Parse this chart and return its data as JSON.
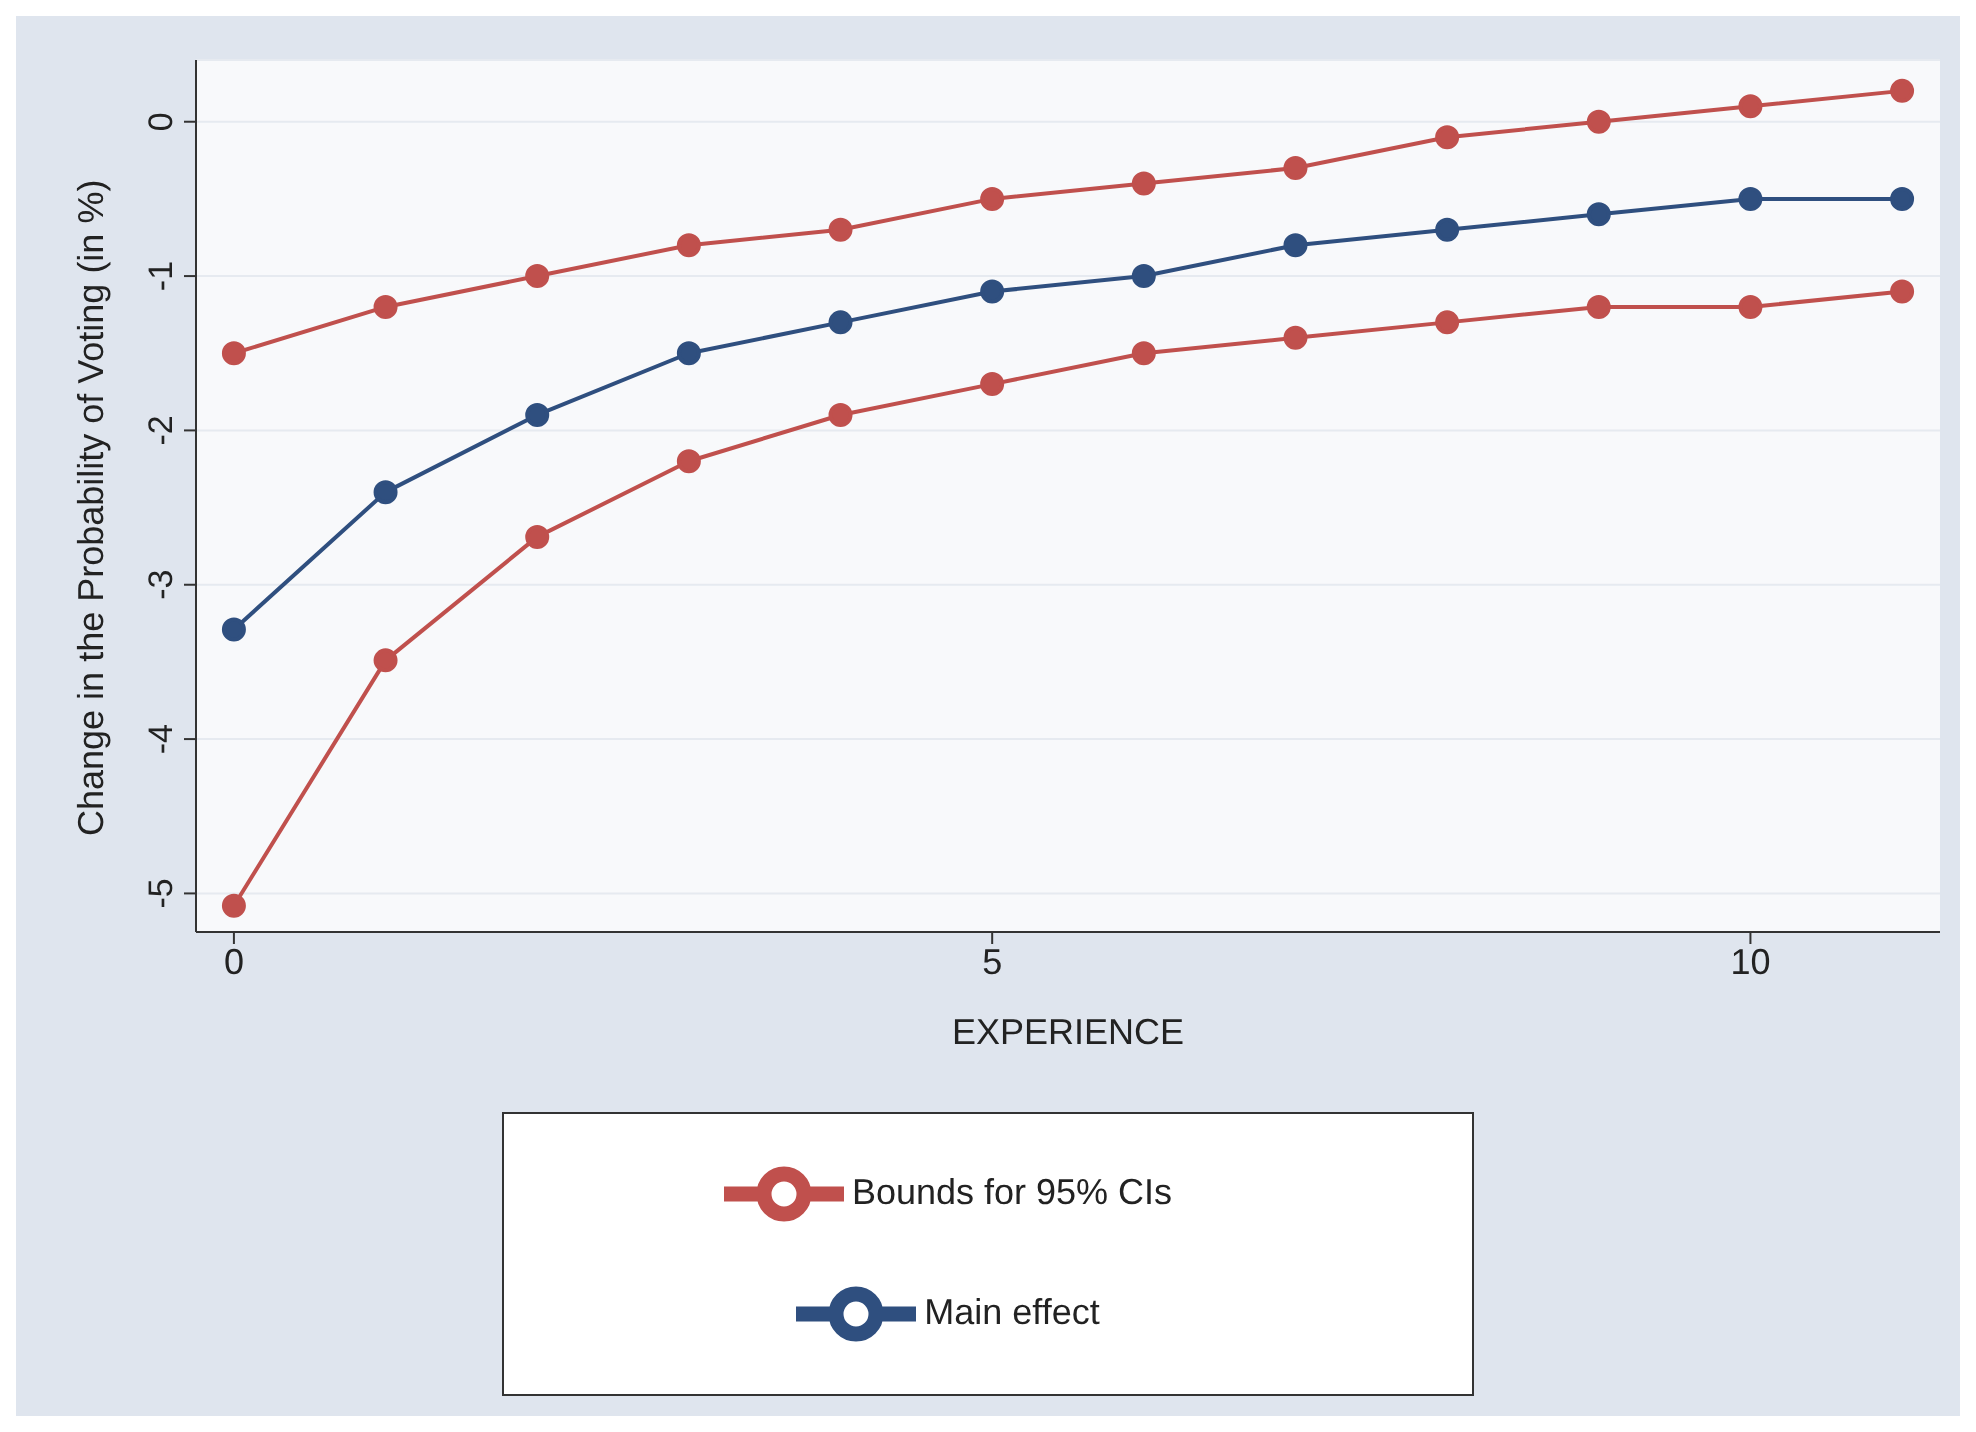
{
  "chart_data": {
    "type": "line",
    "xlabel": "EXPERIENCE",
    "ylabel": "Change in the Probability of Voting (in %)",
    "x": [
      0,
      1,
      2,
      3,
      4,
      5,
      6,
      7,
      8,
      9,
      10,
      11
    ],
    "series": [
      {
        "name": "Main effect",
        "color": "#2f4f7f",
        "values": [
          -3.29,
          -2.4,
          -1.9,
          -1.5,
          -1.3,
          -1.1,
          -1.0,
          -0.8,
          -0.7,
          -0.6,
          -0.5,
          -0.5
        ]
      },
      {
        "name": "Bounds for 95% CIs",
        "color": "#c0504d",
        "values": [
          -1.5,
          -1.2,
          -1.0,
          -0.8,
          -0.7,
          -0.5,
          -0.4,
          -0.3,
          -0.1,
          0,
          0.1,
          0.2
        ]
      },
      {
        "color": "#c0504d",
        "values": [
          -5.08,
          -3.49,
          -2.69,
          -2.2,
          -1.9,
          -1.7,
          -1.5,
          -1.4,
          -1.3,
          -1.2,
          -1.2,
          -1.1
        ]
      }
    ],
    "xlim": [
      -0.25,
      11.25
    ],
    "xticks": [
      0,
      5,
      10
    ],
    "ylim": [
      -5.25,
      0.4
    ],
    "yticks": [
      -5,
      -4,
      -3,
      -2,
      -1,
      0
    ],
    "grid": "y",
    "legend": "bottom",
    "marker": "circle",
    "line_style": "solid"
  }
}
